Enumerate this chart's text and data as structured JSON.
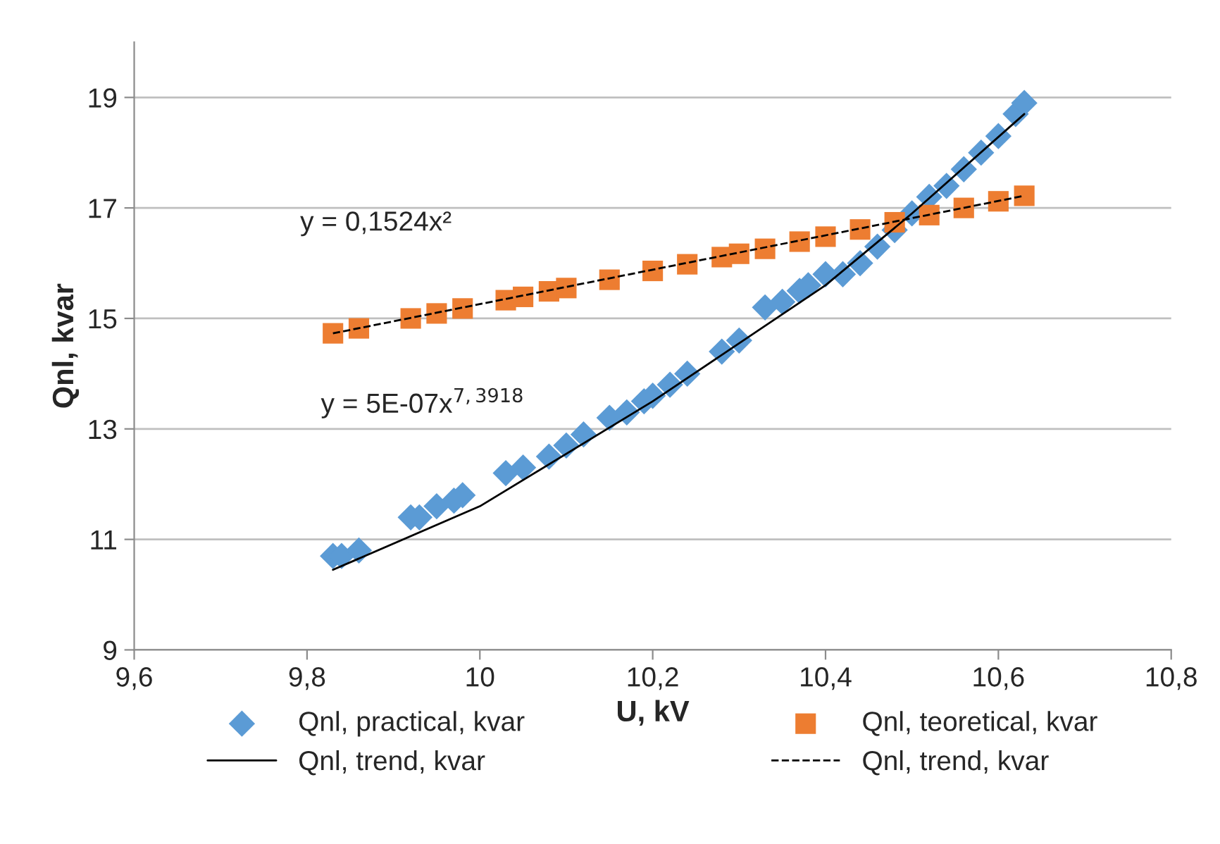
{
  "chart_data": {
    "type": "scatter",
    "xlabel": "U, kV",
    "ylabel": "Qnl, kvar",
    "xlim": [
      9.6,
      10.8
    ],
    "ylim": [
      9,
      20
    ],
    "xticks": [
      {
        "value": 9.6,
        "label": "9,6"
      },
      {
        "value": 9.8,
        "label": "9,8"
      },
      10,
      {
        "value": 10.2,
        "label": "10,2"
      },
      {
        "value": 10.4,
        "label": "10,4"
      },
      {
        "value": 10.6,
        "label": "10,6"
      },
      {
        "value": 10.8,
        "label": "10,8"
      }
    ],
    "yticks": [
      9,
      11,
      13,
      15,
      17,
      19
    ],
    "grid": "y",
    "legend": "bottom",
    "series": [
      {
        "name": "Qnl, practical, kvar",
        "color": "#5b9bd5",
        "marker": "diamond",
        "x": [
          9.83,
          9.84,
          9.86,
          9.92,
          9.93,
          9.95,
          9.97,
          9.98,
          10.03,
          10.05,
          10.08,
          10.1,
          10.12,
          10.15,
          10.17,
          10.19,
          10.2,
          10.22,
          10.24,
          10.28,
          10.3,
          10.33,
          10.35,
          10.37,
          10.38,
          10.4,
          10.42,
          10.44,
          10.46,
          10.48,
          10.5,
          10.52,
          10.54,
          10.56,
          10.58,
          10.6,
          10.62,
          10.63
        ],
        "values": [
          10.7,
          10.7,
          10.8,
          11.4,
          11.4,
          11.6,
          11.7,
          11.8,
          12.2,
          12.3,
          12.5,
          12.7,
          12.9,
          13.2,
          13.3,
          13.5,
          13.6,
          13.8,
          14.0,
          14.4,
          14.6,
          15.2,
          15.3,
          15.5,
          15.6,
          15.8,
          15.8,
          16.0,
          16.3,
          16.6,
          16.9,
          17.2,
          17.4,
          17.7,
          18.0,
          18.3,
          18.7,
          18.9
        ]
      },
      {
        "name": "Qnl, teoretical, kvar",
        "color": "#ed7d31",
        "marker": "square",
        "x": [
          9.83,
          9.86,
          9.92,
          9.95,
          9.98,
          10.03,
          10.05,
          10.08,
          10.1,
          10.15,
          10.2,
          10.24,
          10.28,
          10.3,
          10.33,
          10.37,
          10.4,
          10.44,
          10.48,
          10.52,
          10.56,
          10.6,
          10.63
        ],
        "values": [
          14.73,
          14.82,
          15.0,
          15.09,
          15.18,
          15.33,
          15.39,
          15.49,
          15.55,
          15.7,
          15.86,
          15.98,
          16.11,
          16.17,
          16.26,
          16.39,
          16.48,
          16.61,
          16.74,
          16.87,
          17.0,
          17.12,
          17.22
        ]
      },
      {
        "name": "Qnl, trend, kvar",
        "type": "line",
        "color": "#000000",
        "line_style": "solid",
        "x": [
          9.83,
          10.0,
          10.2,
          10.4,
          10.5,
          10.63
        ],
        "values": [
          10.45,
          11.6,
          13.5,
          15.6,
          16.9,
          18.7
        ]
      },
      {
        "name": "Qnl, trend, kvar",
        "type": "line",
        "color": "#000000",
        "line_style": "dashed",
        "x": [
          9.83,
          10.63
        ],
        "values": [
          14.73,
          17.22
        ]
      }
    ],
    "annotations": [
      "y = 0,1524x²",
      "y = 5E-07x$^{7,3918}$"
    ]
  }
}
